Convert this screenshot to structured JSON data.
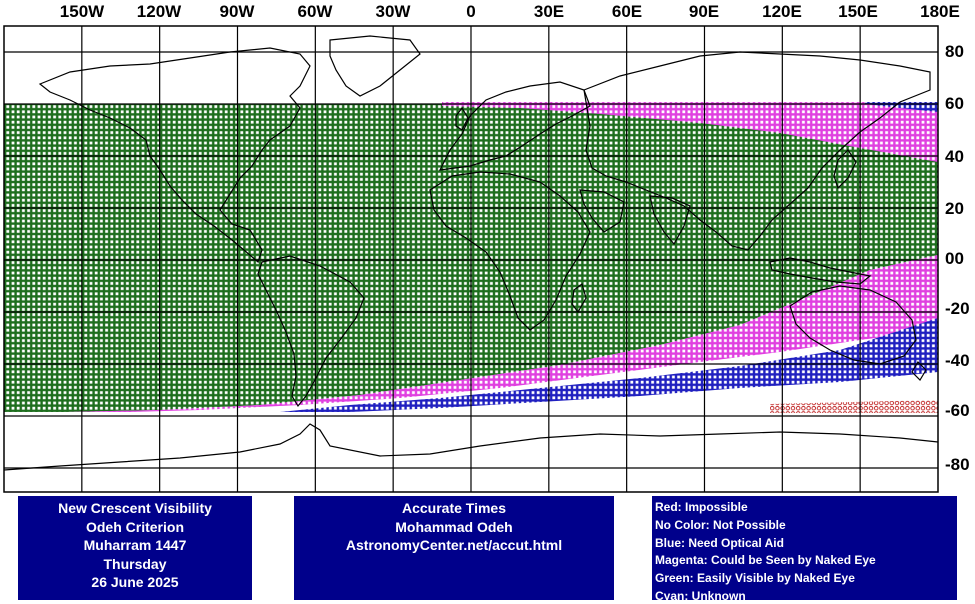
{
  "map": {
    "lon_labels": [
      "150W",
      "120W",
      "90W",
      "60W",
      "30W",
      "0",
      "30E",
      "60E",
      "90E",
      "120E",
      "150E",
      "180E"
    ],
    "lat_labels": [
      "80",
      "60",
      "40",
      "20",
      "00",
      "-20",
      "-40",
      "-60",
      "-80"
    ],
    "lon_values": [
      -150,
      -120,
      -90,
      -60,
      -30,
      0,
      30,
      60,
      90,
      120,
      150,
      180
    ],
    "lat_values": [
      80,
      60,
      40,
      20,
      0,
      -20,
      -40,
      -60,
      -80
    ],
    "colors": {
      "green": "#1e6e1e",
      "magenta": "#e040e0",
      "blue": "#2020c0",
      "red": "#c02020",
      "coast": "#000000",
      "grid": "#000000"
    }
  },
  "info_left": {
    "line1": "New Crescent Visibility",
    "line2": "Odeh Criterion",
    "line3": "Muharram 1447",
    "line4": "Thursday",
    "line5": "26 June 2025"
  },
  "info_mid": {
    "line1": "Accurate Times",
    "line2": "Mohammad Odeh",
    "line3": "AstronomyCenter.net/accut.html"
  },
  "legend": {
    "red": "Red: Impossible",
    "nocolor": "No Color: Not Possible",
    "blue": "Blue: Need Optical Aid",
    "magenta": "Magenta: Could be Seen by Naked Eye",
    "green": "Green: Easily Visible by Naked Eye",
    "cyan": "Cyan: Unknown"
  }
}
